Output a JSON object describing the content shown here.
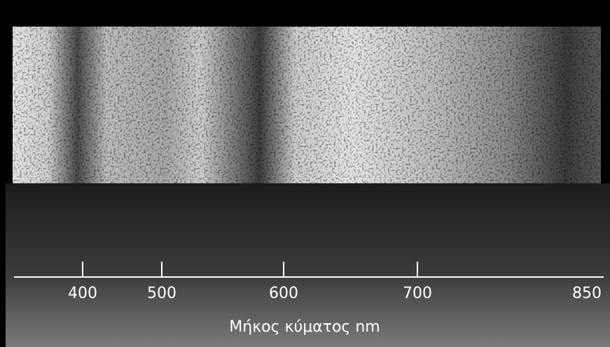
{
  "axis": {
    "ticks": [
      "400",
      "500",
      "600",
      "700",
      "850"
    ],
    "title": "Μήκος κύματος nm"
  }
}
